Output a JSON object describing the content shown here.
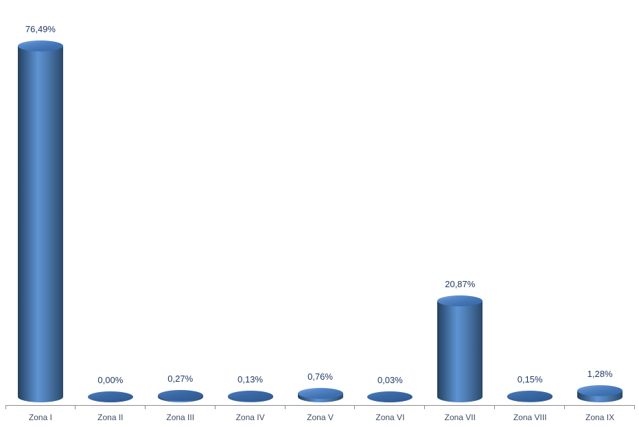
{
  "page": {
    "background": "#ffffff"
  },
  "chart_data": {
    "type": "bar",
    "style": "3d-cylinder",
    "title": "",
    "xlabel": "",
    "ylabel": "",
    "unit": "%",
    "decimal_separator": ",",
    "categories": [
      "Zona I",
      "Zona II",
      "Zona III",
      "Zona IV",
      "Zona V",
      "Zona VI",
      "Zona VII",
      "Zona VIII",
      "Zona IX"
    ],
    "values": [
      76.49,
      0.0,
      0.27,
      0.13,
      0.76,
      0.03,
      20.87,
      0.15,
      1.28
    ],
    "value_labels": [
      "76,49%",
      "0,00%",
      "0,27%",
      "0,13%",
      "0,76%",
      "0,03%",
      "20,87%",
      "0,15%",
      "1,28%"
    ],
    "ylim": [
      0,
      85
    ],
    "grid": false,
    "legend": false,
    "colors": {
      "bar_fill": "#4f81bd",
      "bar_highlight": "#5e93d3",
      "bar_shadow": "#26405e",
      "value_label": "#1f3864",
      "category_label": "#3e4b63",
      "axis_line": "#8c8c8c",
      "background": "#ffffff"
    }
  }
}
